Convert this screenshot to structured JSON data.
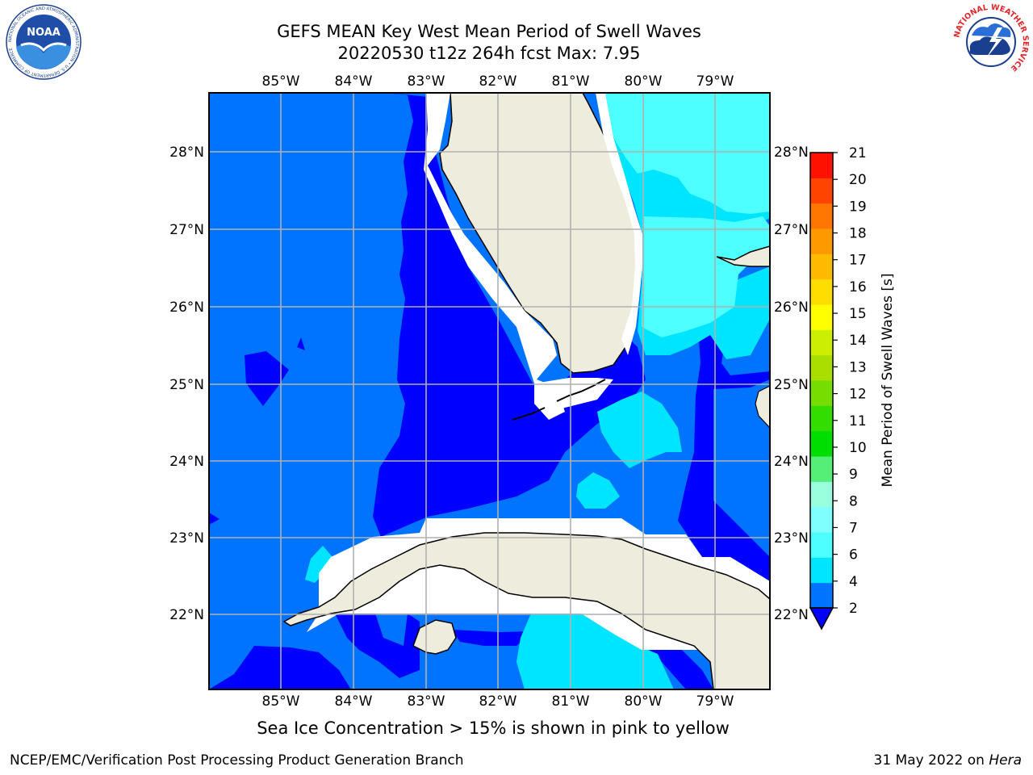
{
  "title": {
    "line1": "GEFS MEAN Key West Mean Period of Swell Waves",
    "line2": "20220530 t12z 264h fcst    Max: 7.95"
  },
  "logos": {
    "noaa_text": "NOAA",
    "noaa_ring_text": "NATIONAL OCEANIC AND ATMOSPHERIC ADMINISTRATION • U.S. DEPARTMENT OF COMMERCE",
    "nws_ring_text": "NATIONAL WEATHER SERVICE"
  },
  "map": {
    "lon_labels": [
      "85°W",
      "84°W",
      "83°W",
      "82°W",
      "81°W",
      "80°W",
      "79°W"
    ],
    "lat_labels": [
      "28°N",
      "27°N",
      "26°N",
      "25°N",
      "24°N",
      "23°N",
      "22°N"
    ],
    "colors": {
      "dark_blue": "#0000ff",
      "mid_blue": "#0074ff",
      "cyan": "#00e5ff",
      "light_cyan": "#4dffff",
      "land": "#eeeddd",
      "grid": "#b0b0b0"
    }
  },
  "colorbar": {
    "label": "Mean Period of Swell Waves [s]",
    "ticks": [
      "2",
      "4",
      "6",
      "7",
      "8",
      "9",
      "10",
      "11",
      "12",
      "13",
      "14",
      "15",
      "16",
      "17",
      "18",
      "19",
      "20",
      "21"
    ],
    "colors": [
      "#0074ff",
      "#00e5ff",
      "#4dffff",
      "#80ffff",
      "#99ffdd",
      "#55ee77",
      "#00dd00",
      "#33dd00",
      "#77dd00",
      "#aadd00",
      "#ccee00",
      "#ffff00",
      "#ffdd00",
      "#ffbb00",
      "#ff9900",
      "#ff7700",
      "#ff4400",
      "#ff1100"
    ],
    "under_color": "#0000ff"
  },
  "caption": "Sea Ice Concentration > 15% is shown in pink to yellow",
  "footer": {
    "left": "NCEP/EMC/Verification Post Processing Product Generation Branch",
    "right_date": "31 May 2022 on ",
    "right_host": "Hera"
  }
}
